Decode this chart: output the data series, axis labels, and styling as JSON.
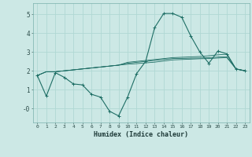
{
  "xlabel": "Humidex (Indice chaleur)",
  "bg_color": "#cce8e5",
  "line_color": "#1e6e65",
  "grid_color": "#b0d8d4",
  "xlim": [
    -0.5,
    23.5
  ],
  "ylim": [
    -0.75,
    5.6
  ],
  "xticks": [
    0,
    1,
    2,
    3,
    4,
    5,
    6,
    7,
    8,
    9,
    10,
    11,
    12,
    13,
    14,
    15,
    16,
    17,
    18,
    19,
    20,
    21,
    22,
    23
  ],
  "yticks": [
    0,
    1,
    2,
    3,
    4,
    5
  ],
  "ytick_labels": [
    "-0",
    "1",
    "2",
    "3",
    "4",
    "5"
  ],
  "main_curve": [
    1.75,
    0.65,
    1.9,
    1.65,
    1.3,
    1.25,
    0.75,
    0.6,
    -0.15,
    -0.4,
    0.6,
    1.85,
    2.5,
    4.3,
    5.05,
    5.05,
    4.85,
    3.85,
    3.0,
    2.4,
    3.05,
    2.9,
    2.1,
    2.0
  ],
  "avg_curves": [
    [
      1.75,
      1.95,
      1.95,
      2.0,
      2.05,
      2.1,
      2.15,
      2.2,
      2.25,
      2.3,
      2.45,
      2.5,
      2.55,
      2.6,
      2.65,
      2.7,
      2.72,
      2.74,
      2.76,
      2.8,
      2.85,
      2.88,
      2.1,
      2.0
    ],
    [
      1.75,
      1.95,
      1.95,
      2.0,
      2.05,
      2.1,
      2.15,
      2.2,
      2.25,
      2.3,
      2.4,
      2.45,
      2.5,
      2.55,
      2.6,
      2.65,
      2.66,
      2.67,
      2.68,
      2.7,
      2.73,
      2.75,
      2.1,
      2.0
    ],
    [
      1.75,
      1.95,
      1.95,
      2.0,
      2.05,
      2.1,
      2.15,
      2.2,
      2.25,
      2.3,
      2.35,
      2.38,
      2.42,
      2.46,
      2.52,
      2.58,
      2.6,
      2.62,
      2.64,
      2.65,
      2.68,
      2.7,
      2.1,
      2.0
    ]
  ]
}
